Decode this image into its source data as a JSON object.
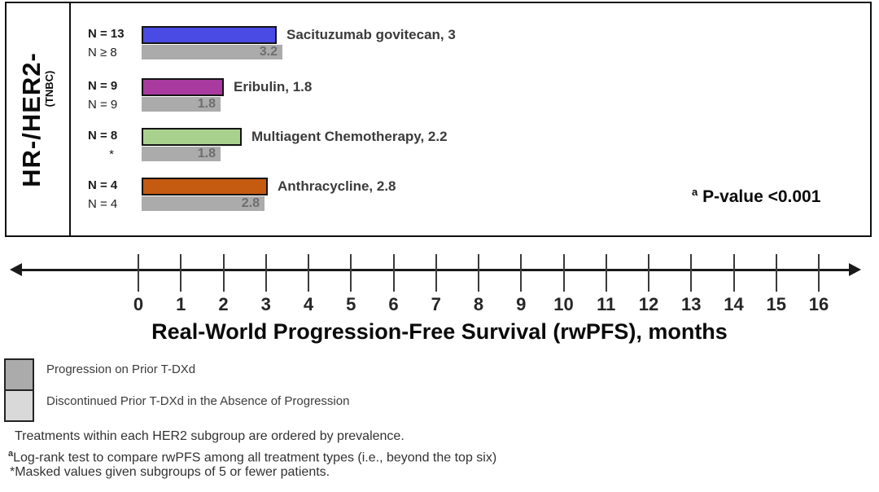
{
  "panel": {
    "group_label": "HR-/HER2-",
    "group_sublabel": "(TNBC)",
    "pvalue_sup": "a",
    "pvalue_text": " P-value <0.001"
  },
  "legend": {
    "items": [
      {
        "label": "Progression on Prior T-DXd",
        "color": "#ABABAB"
      },
      {
        "label": "Discontinued Prior T-DXd in the Absence of Progression",
        "color": "#D9D9D9"
      }
    ]
  },
  "footnotes": {
    "line1": "Treatments within each HER2 subgroup are ordered by prevalence.",
    "line2_sup": "a",
    "line2_text": "Log-rank test to compare rwPFS among all treatment types (i.e., beyond the top six)",
    "line3": "*Masked values given subgroups of 5 or fewer patients."
  },
  "chart_data": {
    "type": "bar",
    "orientation": "horizontal",
    "group": {
      "label": "HR-/HER2-",
      "sublabel": "(TNBC)"
    },
    "xlabel": "Real-World Progression-Free Survival (rwPFS), months",
    "xlim": [
      0,
      16
    ],
    "x_ticks": [
      0,
      1,
      2,
      3,
      4,
      5,
      6,
      7,
      8,
      9,
      10,
      11,
      12,
      13,
      14,
      15,
      16
    ],
    "grid": false,
    "gray_bar_color": "#ABABAB",
    "bars": [
      {
        "treatment": "Sacituzumab govitecan",
        "bar_label": "Sacituzumab govitecan, 3",
        "n_colored": "N = 13",
        "n_gray": "N ≥ 8",
        "value_months": 3,
        "gray_value_months": 3.2,
        "gray_bar_label": "3.2",
        "color": "#4A4AE4"
      },
      {
        "treatment": "Eribulin",
        "bar_label": "Eribulin, 1.8",
        "n_colored": "N = 9",
        "n_gray": "N = 9",
        "value_months": 1.8,
        "gray_value_months": 1.8,
        "gray_bar_label": "1.8",
        "color": "#A83AA0"
      },
      {
        "treatment": "Multiagent Chemotherapy",
        "bar_label": "Multiagent Chemotherapy, 2.2",
        "n_colored": "N = 8",
        "n_gray": "*",
        "value_months": 2.2,
        "gray_value_months": 1.8,
        "gray_bar_label": "1.8",
        "color": "#A9D18E"
      },
      {
        "treatment": "Anthracycline",
        "bar_label": "Anthracycline, 2.8",
        "n_colored": "N = 4",
        "n_gray": "N = 4",
        "value_months": 2.8,
        "gray_value_months": 2.8,
        "gray_bar_label": "2.8",
        "color": "#C55A11"
      }
    ],
    "annotation": {
      "sup": "a",
      "text": " P-value <0.001"
    }
  }
}
